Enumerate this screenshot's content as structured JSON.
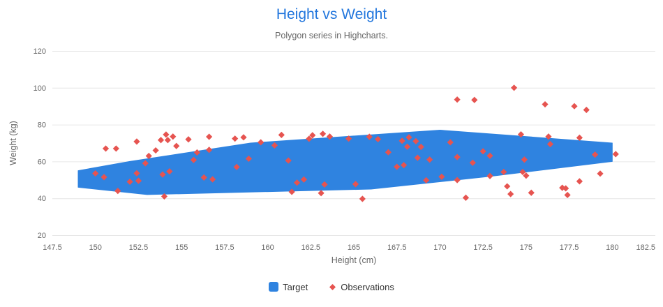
{
  "colors": {
    "title": "#2377DD",
    "subtitle": "#666666",
    "tick_label": "#666666",
    "axis_title": "#666666",
    "grid": "#E6E6E6",
    "legend_text": "#333333",
    "polygon": "#2F83E0",
    "scatter": "#E65450"
  },
  "legend": {
    "target_label": "Target",
    "observations_label": "Observations"
  },
  "chart_data": {
    "type": "scatter",
    "title": "Height vs Weight",
    "subtitle": "Polygon series in Highcharts.",
    "xlabel": "Height (cm)",
    "ylabel": "Weight (kg)",
    "xlim": [
      147.5,
      182.5
    ],
    "ylim": [
      20,
      120
    ],
    "x_ticks": [
      147.5,
      150,
      152.5,
      155,
      157.5,
      160,
      162.5,
      165,
      167.5,
      170,
      172.5,
      175,
      177.5,
      180,
      182.5
    ],
    "x_tick_labels": [
      "147.5",
      "150",
      "152.5",
      "155",
      "157.5",
      "160",
      "162.5",
      "165",
      "167.5",
      "170",
      "172.5",
      "175",
      "177.5",
      "180",
      "182.5"
    ],
    "y_ticks": [
      20,
      40,
      60,
      80,
      100,
      120
    ],
    "y_tick_labels": [
      "20",
      "40",
      "60",
      "80",
      "100",
      "120"
    ],
    "grid": true,
    "legend_position": "bottom",
    "series": [
      {
        "name": "Target",
        "type": "polygon",
        "color": "#2F83E0",
        "data": [
          [
            153,
            42
          ],
          [
            149,
            46
          ],
          [
            149,
            55
          ],
          [
            152,
            60
          ],
          [
            159,
            70
          ],
          [
            170,
            77
          ],
          [
            180,
            70
          ],
          [
            180,
            60
          ],
          [
            173,
            52
          ],
          [
            166,
            45
          ]
        ]
      },
      {
        "name": "Observations",
        "type": "scatter",
        "marker": "diamond",
        "color": "#E65450",
        "data": [
          [
            150.0,
            53.5
          ],
          [
            150.5,
            51.5
          ],
          [
            150.6,
            67.0
          ],
          [
            151.2,
            67.0
          ],
          [
            151.3,
            44.0
          ],
          [
            152.0,
            49.0
          ],
          [
            152.4,
            70.8
          ],
          [
            152.4,
            53.6
          ],
          [
            152.5,
            49.5
          ],
          [
            152.9,
            59.0
          ],
          [
            153.1,
            63.0
          ],
          [
            153.5,
            66.0
          ],
          [
            153.8,
            71.6
          ],
          [
            153.9,
            52.9
          ],
          [
            154.0,
            41.0
          ],
          [
            154.1,
            74.6
          ],
          [
            154.2,
            71.6
          ],
          [
            154.3,
            54.6
          ],
          [
            154.5,
            73.5
          ],
          [
            154.7,
            68.4
          ],
          [
            155.4,
            72.0
          ],
          [
            155.7,
            60.8
          ],
          [
            155.9,
            64.9
          ],
          [
            156.3,
            51.3
          ],
          [
            156.6,
            66.3
          ],
          [
            156.6,
            73.4
          ],
          [
            156.8,
            50.3
          ],
          [
            158.1,
            72.4
          ],
          [
            158.2,
            57.0
          ],
          [
            158.6,
            73.1
          ],
          [
            158.9,
            61.5
          ],
          [
            159.6,
            70.4
          ],
          [
            160.4,
            68.7
          ],
          [
            160.8,
            74.4
          ],
          [
            161.2,
            60.5
          ],
          [
            161.4,
            43.5
          ],
          [
            161.7,
            48.5
          ],
          [
            162.1,
            50.2
          ],
          [
            162.4,
            72.3
          ],
          [
            162.6,
            74.2
          ],
          [
            163.1,
            42.8
          ],
          [
            163.2,
            75.0
          ],
          [
            163.3,
            47.5
          ],
          [
            163.6,
            73.5
          ],
          [
            164.7,
            72.4
          ],
          [
            165.1,
            47.7
          ],
          [
            165.5,
            39.7
          ],
          [
            165.9,
            73.4
          ],
          [
            166.4,
            72.1
          ],
          [
            167.0,
            65.0
          ],
          [
            167.5,
            57.1
          ],
          [
            167.9,
            58.0
          ],
          [
            167.8,
            71.2
          ],
          [
            168.1,
            68.0
          ],
          [
            168.2,
            73.1
          ],
          [
            168.6,
            71.0
          ],
          [
            168.9,
            67.9
          ],
          [
            168.7,
            62.0
          ],
          [
            169.2,
            49.8
          ],
          [
            169.4,
            61.0
          ],
          [
            170.1,
            51.7
          ],
          [
            170.6,
            70.4
          ],
          [
            171.0,
            49.9
          ],
          [
            171.0,
            62.4
          ],
          [
            171.0,
            93.6
          ],
          [
            171.5,
            40.3
          ],
          [
            171.9,
            59.3
          ],
          [
            172.0,
            93.4
          ],
          [
            172.5,
            65.5
          ],
          [
            172.9,
            52.1
          ],
          [
            172.9,
            63.1
          ],
          [
            173.7,
            54.3
          ],
          [
            173.9,
            46.5
          ],
          [
            174.1,
            42.3
          ],
          [
            174.3,
            100.0
          ],
          [
            174.7,
            74.7
          ],
          [
            174.8,
            54.3
          ],
          [
            174.9,
            61.0
          ],
          [
            175.0,
            52.3
          ],
          [
            175.3,
            43.0
          ],
          [
            176.1,
            91.0
          ],
          [
            176.3,
            73.5
          ],
          [
            176.4,
            69.4
          ],
          [
            177.1,
            45.7
          ],
          [
            177.3,
            45.4
          ],
          [
            177.4,
            41.8
          ],
          [
            177.8,
            90.0
          ],
          [
            178.1,
            49.2
          ],
          [
            178.1,
            72.9
          ],
          [
            178.5,
            88.0
          ],
          [
            179.0,
            63.7
          ],
          [
            179.3,
            53.4
          ],
          [
            180.2,
            64.0
          ]
        ]
      }
    ]
  }
}
